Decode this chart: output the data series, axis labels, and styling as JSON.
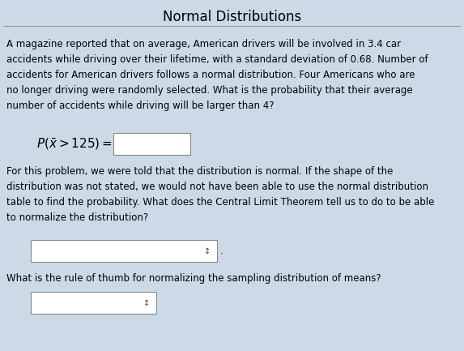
{
  "title": "Normal Distributions",
  "background_color": "#ccdae8",
  "title_color": "#000000",
  "separator_color": "#999999",
  "body_lines": [
    "A magazine reported that on average, American drivers will be involved in 3.4 car",
    "accidents while driving over their lifetime, with a standard deviation of 0.68. Number of",
    "accidents for American drivers follows a normal distribution. Four Americans who are",
    "no longer driving were randomly selected. What is the probability that their average",
    "number of accidents while driving will be larger than 4?"
  ],
  "para2_lines": [
    "For this problem, we were told that the distribution is normal. If the shape of the",
    "distribution was not stated, we would not have been able to use the normal distribution",
    "table to find the probability. What does the Central Limit Theorem tell us to do to be able",
    "to normalize the distribution?"
  ],
  "question2": "What is the rule of thumb for normalizing the sampling distribution of means?",
  "text_fontsize": 8.5,
  "title_fontsize": 12,
  "formula_fontsize": 11
}
